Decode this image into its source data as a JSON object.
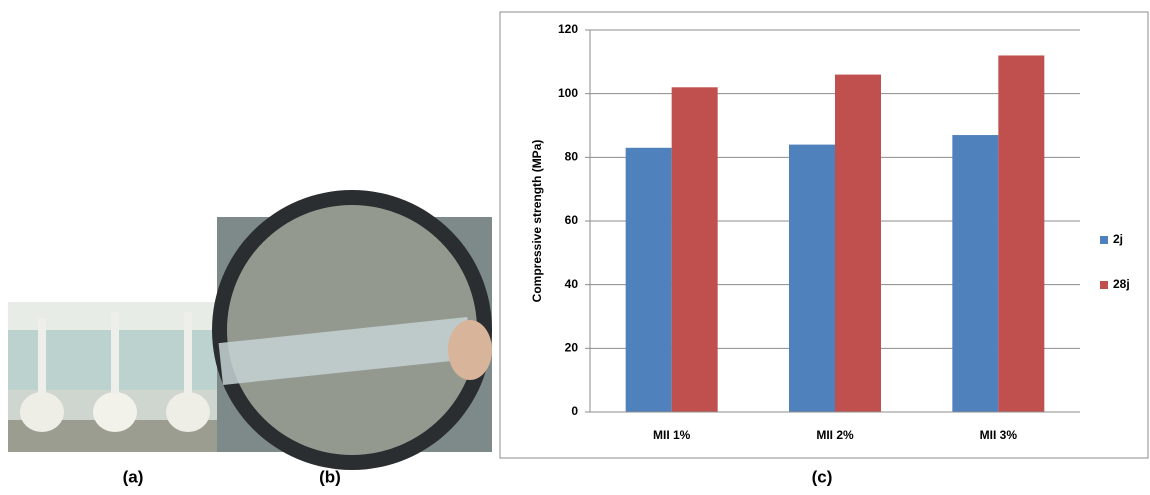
{
  "chart_data": {
    "type": "bar",
    "y_label": "Compressive strength  (MPa)",
    "categories": [
      "MII 1%",
      "MII 2%",
      "MII 3%"
    ],
    "series": [
      {
        "name": "2j",
        "color": "#4f81bd",
        "values": [
          83,
          84,
          87
        ]
      },
      {
        "name": "28j",
        "color": "#c0504d",
        "values": [
          102,
          106,
          112
        ]
      }
    ],
    "ylim": [
      0,
      120
    ],
    "yticks": [
      0,
      20,
      40,
      60,
      80,
      100,
      120
    ],
    "grid": true,
    "legend": "right"
  },
  "captions": [
    "(a)",
    "(b)",
    "(c)"
  ]
}
